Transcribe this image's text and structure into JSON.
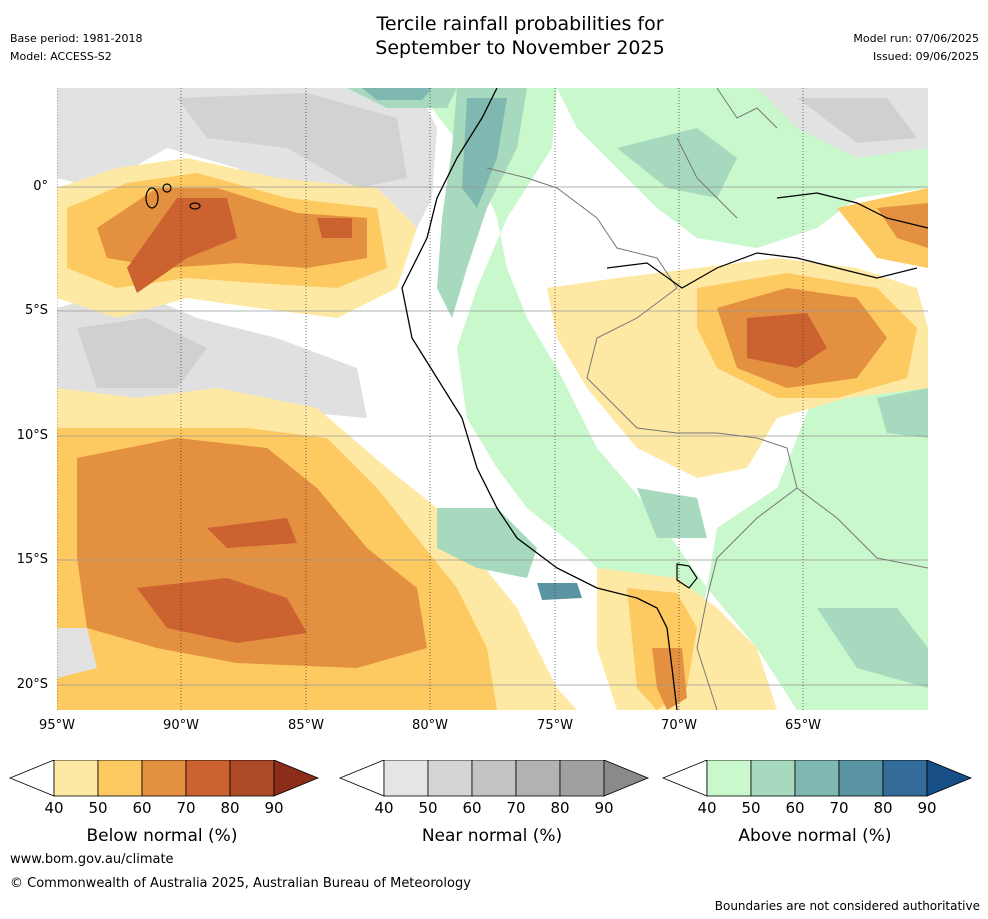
{
  "header": {
    "title_line1": "Tercile rainfall probabilities for",
    "title_line2": "September to November 2025",
    "base_period": "Base period: 1981-2018",
    "model": "Model: ACCESS-S2",
    "model_run": "Model run: 07/06/2025",
    "issued": "Issued: 09/06/2025"
  },
  "map": {
    "lat_labels": [
      "0°",
      "5°S",
      "10°S",
      "15°S",
      "20°S"
    ],
    "lon_labels": [
      "95°W",
      "90°W",
      "85°W",
      "80°W",
      "75°W",
      "70°W",
      "65°W"
    ]
  },
  "colorbars": [
    {
      "title": "Below normal (%)",
      "ticks": [
        "40",
        "50",
        "60",
        "70",
        "80",
        "90"
      ],
      "colors": [
        "#fee9a4",
        "#fdc961",
        "#e39040",
        "#cc6230",
        "#ad4a28",
        "#8c2d1a"
      ]
    },
    {
      "title": "Near normal (%)",
      "ticks": [
        "40",
        "50",
        "60",
        "70",
        "80",
        "90"
      ],
      "colors": [
        "#e5e5e5",
        "#d4d4d4",
        "#c3c3c3",
        "#b2b2b2",
        "#a0a0a0",
        "#8a8a8a"
      ]
    },
    {
      "title": "Above normal (%)",
      "ticks": [
        "40",
        "50",
        "60",
        "70",
        "80",
        "90"
      ],
      "colors": [
        "#c8f8cc",
        "#a6d9bd",
        "#7fb8b0",
        "#5a93a1",
        "#336b99",
        "#174e85"
      ]
    }
  ],
  "footer": {
    "website": "www.bom.gov.au/climate",
    "copyright": "© Commonwealth of Australia 2025, Australian Bureau of Meteorology",
    "disclaimer": "Boundaries are not considered authoritative"
  }
}
